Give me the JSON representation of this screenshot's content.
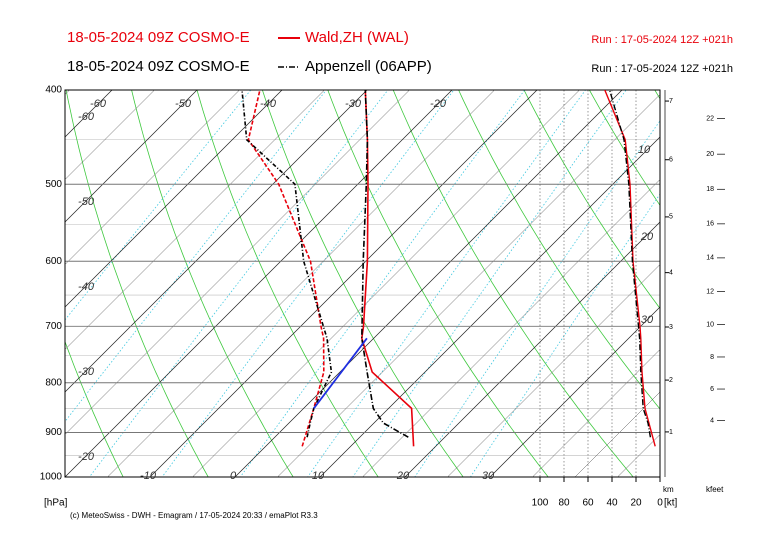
{
  "chart_data": {
    "type": "emagram",
    "runs": [
      {
        "model": "18-05-2024 09Z COSMO-E",
        "station": "Wald,ZH (WAL)",
        "run": "Run : 17-05-2024 12Z +021h",
        "color": "#e8000b",
        "style": "solid"
      },
      {
        "model": "18-05-2024 09Z COSMO-E",
        "station": "Appenzell (06APP)",
        "run": "Run : 17-05-2024 12Z +021h",
        "color": "#000000",
        "style": "dashdot"
      }
    ],
    "series": [
      {
        "name": "Wald,ZH (WAL)",
        "color": "#e8000b",
        "style": "solid",
        "pressure": [
          930,
          850,
          780,
          720,
          700,
          600,
          500,
          450,
          400
        ],
        "temperature": [
          17.4,
          12.7,
          3.8,
          -1.4,
          -2.6,
          -9.8,
          -18.8,
          -24.1,
          -30.2
        ],
        "dewpoint": [
          4.3,
          1.2,
          -1.9,
          -5.9,
          -7.6,
          -16.5,
          -29.3,
          -38.1,
          -42.6
        ],
        "wind_speed": [
          4,
          12.5,
          15,
          16,
          16.7,
          22.5,
          25,
          29,
          46
        ]
      },
      {
        "name": "Appenzell (06APP)",
        "color": "#000000",
        "style": "dashdot",
        "pressure": [
          910,
          880,
          850,
          780,
          720,
          600,
          500,
          450,
          400
        ],
        "temperature": [
          15.7,
          11.1,
          8.2,
          3.2,
          -1.4,
          -10.3,
          -19,
          -24.1,
          -30.2
        ],
        "dewpoint": [
          3.8,
          2.5,
          1.2,
          -1,
          -5.5,
          -17.3,
          -27.4,
          -38.3,
          -44.7
        ],
        "wind_speed": [
          8,
          10,
          14,
          16,
          17,
          23,
          26,
          30,
          42
        ]
      }
    ],
    "parcel": {
      "color": "#1f2fe0",
      "pressure": [
        850,
        720
      ],
      "values": [
        1.2,
        -0.8
      ]
    },
    "ylim": [
      1000,
      400
    ],
    "yticks": [
      400,
      500,
      600,
      700,
      800,
      900,
      1000
    ],
    "log_y": true,
    "y_unit": "[hPa]",
    "xlim": [
      -20,
      50
    ],
    "isotherms": [
      -60,
      -50,
      -40,
      -30,
      -20,
      -10,
      0,
      10,
      20,
      30
    ],
    "top_labels": [
      -60,
      -50,
      -40,
      -30,
      -20
    ],
    "left_labels": [
      -60,
      -50,
      -40,
      -30,
      -20
    ],
    "bottom_labels": [
      -10,
      0,
      10,
      20,
      30
    ],
    "right_labels": [
      10,
      20,
      30
    ],
    "wind_xlim": [
      100,
      0
    ],
    "wind_ticks": [
      100,
      80,
      60,
      40,
      20,
      0
    ],
    "wind_unit": "[kt]",
    "km_ticks": [
      1,
      2,
      3,
      4,
      5,
      6,
      7
    ],
    "km_label": "km",
    "kfeet_ticks": [
      4,
      6,
      8,
      10,
      12,
      14,
      16,
      18,
      20,
      22
    ],
    "kfeet_label": "kfeet",
    "footer": "(c) MeteoSwiss - DWH - Emagram / 17-05-2024 20:33 / emaPlot R3.3"
  }
}
